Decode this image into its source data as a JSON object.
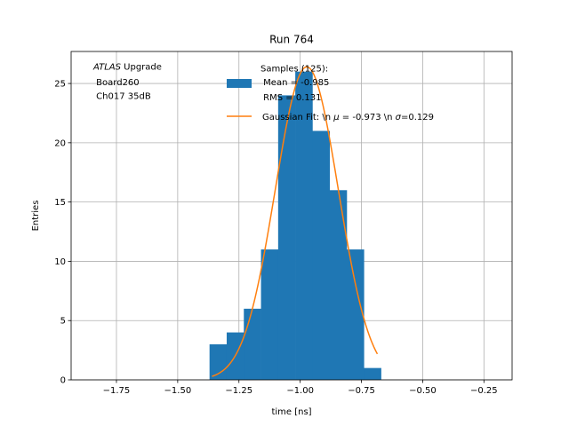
{
  "chart_data": {
    "type": "bar",
    "title": "Run 764",
    "xlabel": "time [ns]",
    "ylabel": "Entries",
    "xlim": [
      -1.935,
      -0.135
    ],
    "ylim": [
      0,
      27.7
    ],
    "grid": true,
    "x_ticks": [
      -1.75,
      -1.5,
      -1.25,
      -1.0,
      -0.75,
      -0.5,
      -0.25
    ],
    "y_ticks": [
      0,
      5,
      10,
      15,
      20,
      25
    ],
    "annotation": {
      "atlas": "ATLAS",
      "upgrade": " Upgrade",
      "board": " Board260",
      "channel": " Ch017 35dB"
    },
    "histogram": {
      "name": "Samples (125):\n Mean = -0.985\n RMS = 0.131",
      "color": "#1f77b4",
      "bin_edges": [
        -1.37,
        -1.3,
        -1.23,
        -1.16,
        -1.09,
        -1.02,
        -0.95,
        -0.88,
        -0.81,
        -0.74,
        -0.67
      ],
      "counts": [
        3,
        4,
        6,
        11,
        24,
        26,
        21,
        16,
        11,
        1
      ]
    },
    "fit": {
      "name": "Gaussian Fit: \\n $\\mu$ = -0.973 \\n $\\sigma$=0.129",
      "color": "#ff7f0e",
      "mu": -0.973,
      "sigma": 0.129,
      "amplitude": 26.4,
      "x_range": [
        -1.36,
        -0.685
      ]
    },
    "legend": {
      "placement": "upper-right",
      "samples_line1": "Samples (125):",
      "samples_line2": " Mean = -0.985",
      "samples_line3": " RMS = 0.131",
      "fit_prefix": "Gaussian Fit: \\n ",
      "fit_mu_sym": "μ",
      "fit_mid": " = -0.973 \\n ",
      "fit_sigma_sym": "σ",
      "fit_suffix": "=0.129"
    }
  }
}
